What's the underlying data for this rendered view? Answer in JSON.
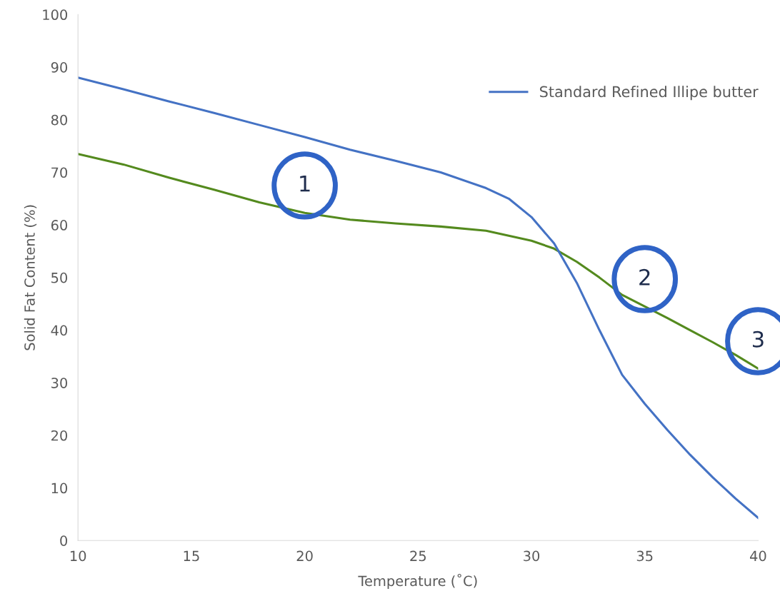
{
  "chart_data": {
    "type": "line",
    "xlabel": "Temperature (˚C)",
    "ylabel": "Solid Fat Content (%)",
    "xlim": [
      10,
      40
    ],
    "xticks": [
      10,
      15,
      20,
      25,
      30,
      35,
      40
    ],
    "ylim": [
      0,
      100
    ],
    "yticks": [
      0,
      10,
      20,
      30,
      40,
      50,
      60,
      70,
      80,
      90,
      100
    ],
    "grid": false,
    "legend": "top right",
    "series": [
      {
        "color": "#548a1e",
        "x": [
          10,
          12,
          14,
          16,
          18,
          20,
          22,
          24,
          26,
          28,
          30,
          31,
          32,
          33,
          34,
          35,
          36,
          37,
          38,
          39,
          40
        ],
        "values": [
          73.5,
          71.5,
          69,
          66.7,
          64.3,
          62.3,
          61,
          60.3,
          59.7,
          58.9,
          57,
          55.5,
          53,
          50,
          46.7,
          44.5,
          42.3,
          40,
          37.7,
          35.3,
          32.7
        ]
      },
      {
        "name": "Standard Refined Illipe butter",
        "color": "#4472c4",
        "x": [
          10,
          12,
          14,
          16,
          18,
          20,
          22,
          24,
          26,
          28,
          29,
          30,
          31,
          32,
          33,
          34,
          35,
          36,
          37,
          38,
          39,
          40
        ],
        "values": [
          88,
          85.8,
          83.5,
          81.3,
          79,
          76.7,
          74.3,
          72.2,
          70,
          67,
          65,
          61.5,
          56.5,
          49,
          40,
          31.5,
          26,
          21,
          16.3,
          12,
          8,
          4.3
        ]
      }
    ],
    "annotations": [
      {
        "text": "1",
        "x": 20,
        "y": 62.3
      },
      {
        "text": "2",
        "x": 35,
        "y": 44.5
      },
      {
        "text": "3",
        "x": 40,
        "y": 32.7
      }
    ]
  }
}
